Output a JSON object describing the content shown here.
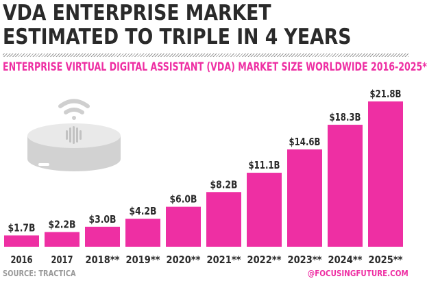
{
  "header": {
    "title_line1": "VDA ENTERPRISE MARKET",
    "title_line2": "ESTIMATED TO TRIPLE IN 4 YEARS",
    "subtitle": "ENTERPRISE VIRTUAL DIGITAL ASSISTANT (VDA) MARKET SIZE WORLDWIDE 2016-2025*"
  },
  "footer": {
    "source": "SOURCE: TRACTICA",
    "handle": "@FOCUSINGFUTURE.COM"
  },
  "colors": {
    "bar": "#ee2fa3",
    "title": "#2a2a2a",
    "accent": "#ee2fa3",
    "muted": "#9a9a9a"
  },
  "icons": [
    "smart-speaker-icon",
    "wifi-signal-icon"
  ],
  "chart_data": {
    "type": "bar",
    "categories": [
      "2016",
      "2017",
      "2018**",
      "2019**",
      "2020**",
      "2021**",
      "2022**",
      "2023**",
      "2024**",
      "2025**"
    ],
    "values": [
      1.7,
      2.2,
      3.0,
      4.2,
      6.0,
      8.2,
      11.1,
      14.6,
      18.3,
      21.8
    ],
    "data_labels": [
      "$1.7B",
      "$2.2B",
      "$3.0B",
      "$4.2B",
      "$6.0B",
      "$8.2B",
      "$11.1B",
      "$14.6B",
      "$18.3B",
      "$21.8B"
    ],
    "title": "ENTERPRISE VIRTUAL DIGITAL ASSISTANT (VDA) MARKET SIZE WORLDWIDE 2016-2025*",
    "xlabel": "",
    "ylabel": "",
    "grid": false,
    "legend": "none"
  }
}
